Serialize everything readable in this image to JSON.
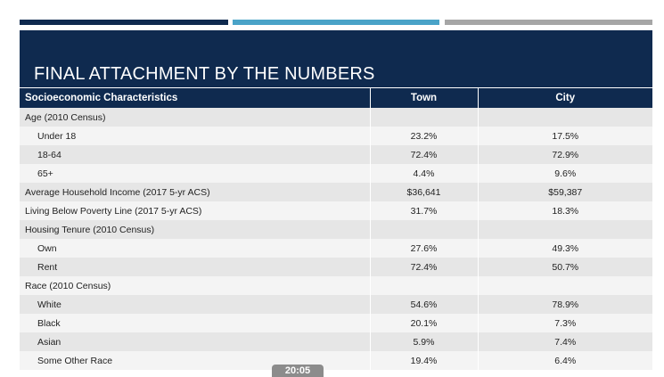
{
  "colors": {
    "navy": "#0f2a4f",
    "bar1": "#0f2a4f",
    "bar2": "#4aa3c8",
    "bar3": "#a6a6a6"
  },
  "slide": {
    "title": "FINAL ATTACHMENT BY THE NUMBERS"
  },
  "table": {
    "headers": [
      "Socioeconomic Characteristics",
      "Town",
      "City"
    ],
    "rows": [
      {
        "label": "Age (2010 Census)",
        "town": "",
        "city": "",
        "indent": false
      },
      {
        "label": "Under 18",
        "town": "23.2%",
        "city": "17.5%",
        "indent": true
      },
      {
        "label": "18-64",
        "town": "72.4%",
        "city": "72.9%",
        "indent": true
      },
      {
        "label": "65+",
        "town": "4.4%",
        "city": "9.6%",
        "indent": true
      },
      {
        "label": "Average Household Income (2017 5-yr ACS)",
        "town": "$36,641",
        "city": "$59,387",
        "indent": false
      },
      {
        "label": "Living Below Poverty Line (2017 5-yr ACS)",
        "town": "31.7%",
        "city": "18.3%",
        "indent": false
      },
      {
        "label": "Housing Tenure (2010 Census)",
        "town": "",
        "city": "",
        "indent": false
      },
      {
        "label": "Own",
        "town": "27.6%",
        "city": "49.3%",
        "indent": true
      },
      {
        "label": "Rent",
        "town": "72.4%",
        "city": "50.7%",
        "indent": true
      },
      {
        "label": "Race (2010 Census)",
        "town": "",
        "city": "",
        "indent": false
      },
      {
        "label": "White",
        "town": "54.6%",
        "city": "78.9%",
        "indent": true
      },
      {
        "label": "Black",
        "town": "20.1%",
        "city": "7.3%",
        "indent": true
      },
      {
        "label": "Asian",
        "town": "5.9%",
        "city": "7.4%",
        "indent": true
      },
      {
        "label": "Some Other Race",
        "town": "19.4%",
        "city": "6.4%",
        "indent": true
      }
    ]
  },
  "video": {
    "timestamp": "20:05"
  }
}
